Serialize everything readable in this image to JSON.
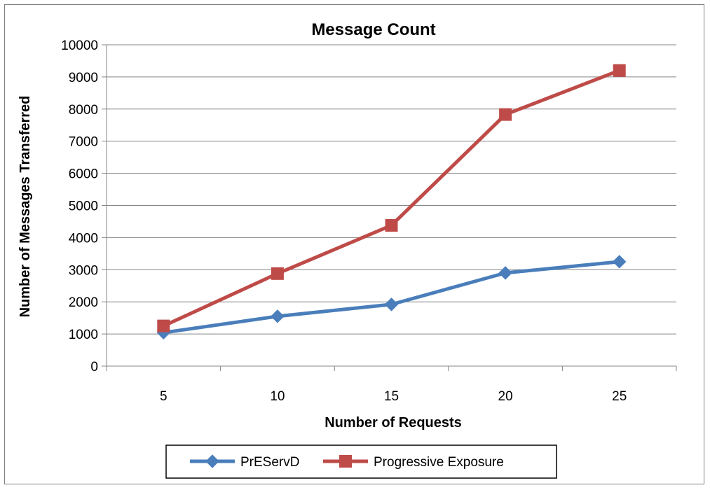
{
  "chart_data": {
    "type": "line",
    "title": "Message Count",
    "xlabel": "Number of Requests",
    "ylabel": "Number of Messages Transferred",
    "categories": [
      "5",
      "10",
      "15",
      "20",
      "25"
    ],
    "ylim": [
      0,
      10000
    ],
    "yticks": [
      "0",
      "1000",
      "2000",
      "3000",
      "4000",
      "5000",
      "6000",
      "7000",
      "8000",
      "9000",
      "10000"
    ],
    "grid": true,
    "legend_position": "bottom",
    "series": [
      {
        "name": "PrEServD",
        "color": "#4a7ebb",
        "marker": "diamond",
        "values": [
          1040,
          1550,
          1920,
          2900,
          3250
        ]
      },
      {
        "name": "Progressive Exposure",
        "color": "#be4b48",
        "marker": "square",
        "values": [
          1250,
          2880,
          4380,
          7830,
          9200
        ]
      }
    ]
  }
}
